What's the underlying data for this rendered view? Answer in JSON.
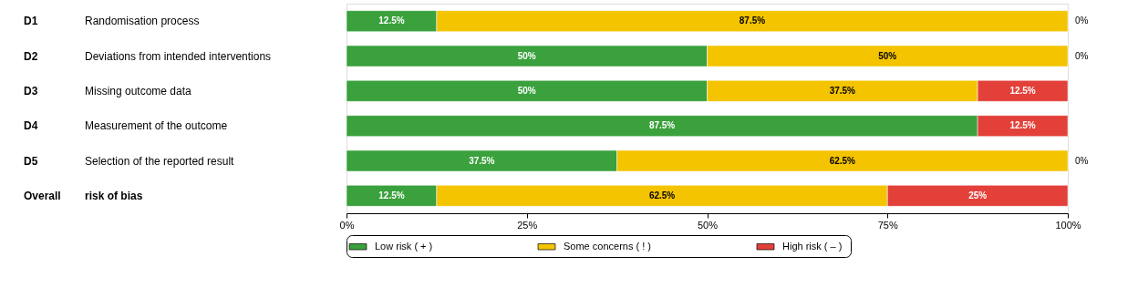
{
  "chart_data": {
    "type": "bar",
    "orientation": "horizontal",
    "stacked": true,
    "categories": [
      "Randomisation process",
      "Deviations from intended interventions",
      "Missing outcome data",
      "Measurement of the outcome",
      "Selection of the reported result",
      "risk of bias"
    ],
    "series": [
      {
        "name": "Low risk  ( + )",
        "color": "#3aa13c",
        "values": [
          12.5,
          50,
          50,
          87.5,
          37.5,
          12.5
        ],
        "value_labels": [
          "12.5%",
          "50%",
          "50%",
          "87.5%",
          "37.5%",
          "12.5%"
        ]
      },
      {
        "name": "Some concerns  ( ! )",
        "color": "#f4c400",
        "values": [
          87.5,
          50,
          37.5,
          0,
          62.5,
          62.5
        ],
        "value_labels": [
          "87.5%",
          "50%",
          "37.5%",
          null,
          "62.5%",
          "62.5%"
        ]
      },
      {
        "name": "High risk  ( – )",
        "color": "#e3403a",
        "values": [
          0,
          0,
          12.5,
          12.5,
          0,
          25
        ],
        "value_labels": [
          "0%",
          "0%",
          "12.5%",
          "12.5%",
          "0%",
          "25%"
        ]
      }
    ],
    "xlim": [
      0,
      100
    ],
    "xticks": [
      {
        "value": 0,
        "label": "0%"
      },
      {
        "value": 25,
        "label": "25%"
      },
      {
        "value": 50,
        "label": "50%"
      },
      {
        "value": 75,
        "label": "75%"
      },
      {
        "value": 100,
        "label": "100%"
      }
    ],
    "annotations": [
      "D1",
      "D2",
      "D3",
      "D4",
      "D5",
      "Overall"
    ],
    "grid": false,
    "legend": "bottom"
  }
}
